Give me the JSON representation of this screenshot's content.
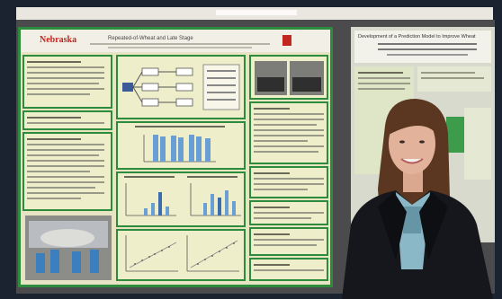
{
  "scene": {
    "kind": "photo",
    "subjects": [
      "woman-presenter",
      "research-poster-left",
      "research-poster-right"
    ],
    "colors": {
      "frame": "#1b2331",
      "ceiling": "#e9e7df",
      "board_bg": "#4b4b4e",
      "poster_green": "#2c8c3c",
      "poster_bg": "#e6e4c3",
      "panel_bg": "#efeecb",
      "bar_blue": "#6a9fd6",
      "jacket": "#16171c",
      "hair": "#5b3722",
      "skin": "#e2b39a"
    }
  },
  "poster_left": {
    "org": "Nebraska",
    "title": "Repeated-of-Wheat and Late Stage"
  },
  "poster_right": {
    "title": "Development of a Prediction Model to Improve Wheat"
  }
}
